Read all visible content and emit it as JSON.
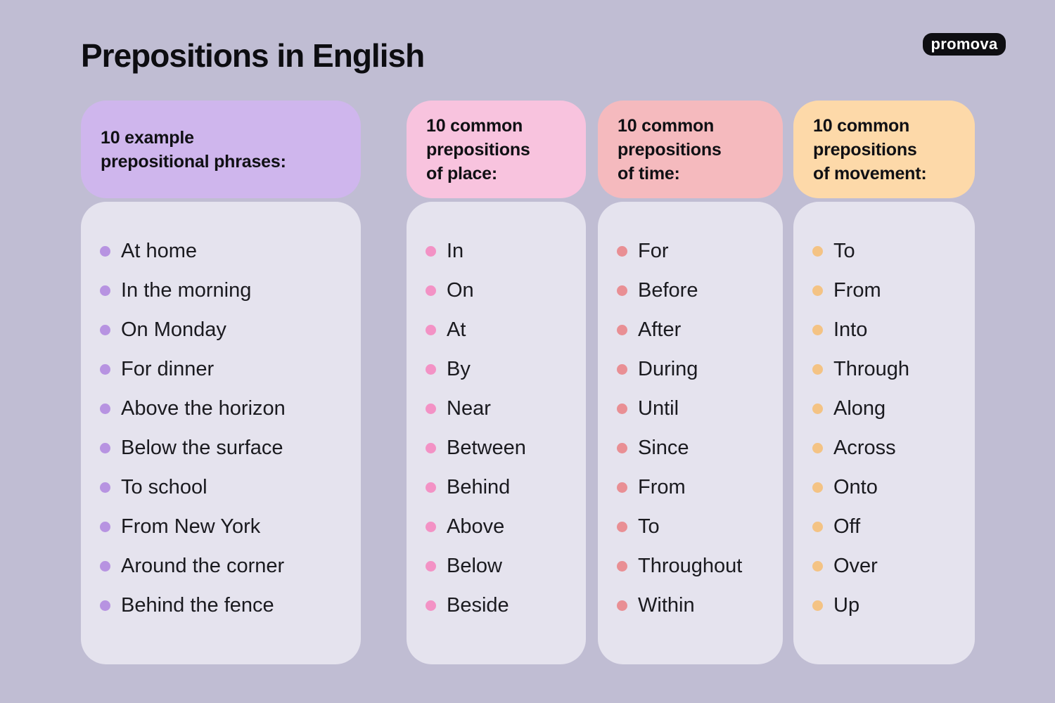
{
  "page": {
    "title": "Prepositions in English",
    "logo_text": "promova",
    "background_color": "#c0bdd3",
    "panel_color": "#e5e3ee",
    "logo_bg_color": "#0e0e12"
  },
  "columns": [
    {
      "id": "example-prepositional-phrases",
      "header": "10 example\nprepositional phrases:",
      "header_color": "#cfb6ed",
      "bullet_color": "#b793e1",
      "items": [
        "At home",
        "In the morning",
        "On Monday",
        "For dinner",
        "Above the horizon",
        "Below the surface",
        "To school",
        "From New York",
        "Around the corner",
        "Behind the fence"
      ]
    },
    {
      "id": "prepositions-of-place",
      "header": "10 common\nprepositions\nof place:",
      "header_color": "#f8c3de",
      "bullet_color": "#f392c5",
      "items": [
        "In",
        "On",
        "At",
        "By",
        "Near",
        "Between",
        "Behind",
        "Above",
        "Below",
        "Beside"
      ]
    },
    {
      "id": "prepositions-of-time",
      "header": "10 common\nprepositions\nof time:",
      "header_color": "#f5babe",
      "bullet_color": "#e98f94",
      "items": [
        "For",
        "Before",
        "After",
        "During",
        "Until",
        "Since",
        "From",
        "To",
        "Throughout",
        "Within"
      ]
    },
    {
      "id": "prepositions-of-movement",
      "header": "10 common\nprepositions\nof movement:",
      "header_color": "#fdd9a9",
      "bullet_color": "#f4c384",
      "items": [
        "To",
        "From",
        "Into",
        "Through",
        "Along",
        "Across",
        "Onto",
        "Off",
        "Over",
        "Up"
      ]
    }
  ]
}
